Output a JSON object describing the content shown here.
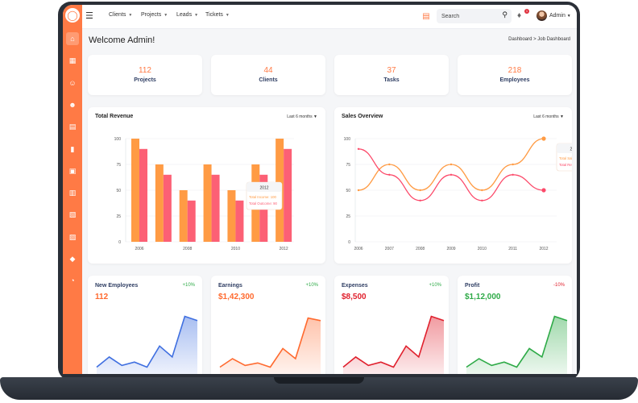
{
  "topbar": {
    "nav": [
      {
        "label": "Clients"
      },
      {
        "label": "Projects"
      },
      {
        "label": "Leads"
      },
      {
        "label": "Tickets"
      }
    ],
    "search_placeholder": "Search",
    "notification_count": "1",
    "user_name": "Admin"
  },
  "sidebar": {
    "items": [
      "home-icon",
      "dashboard-icon",
      "users-icon",
      "user-icon",
      "document-icon",
      "chart-icon",
      "ticket-icon",
      "clipboard-icon",
      "file-icon",
      "file-text-icon",
      "shield-icon",
      "clock-icon"
    ]
  },
  "page": {
    "title": "Welcome Admin!",
    "breadcrumb": "Dashboard  >  Job Dashboard"
  },
  "stats": [
    {
      "value": "112",
      "label": "Projects"
    },
    {
      "value": "44",
      "label": "Clients"
    },
    {
      "value": "37",
      "label": "Tasks"
    },
    {
      "value": "218",
      "label": "Employees"
    }
  ],
  "revenue_chart": {
    "title": "Total Revenue",
    "range": "Last 6 months",
    "tooltip": {
      "year": "2012",
      "line1": "Total Income: 100",
      "line2": "Total Outcome: 90"
    },
    "chart_data": {
      "type": "bar",
      "categories": [
        "2006",
        "2007",
        "2008",
        "2009",
        "2010",
        "2011",
        "2012"
      ],
      "tick_labels": [
        "2006",
        "2008",
        "2010",
        "2012"
      ],
      "series": [
        {
          "values": [
            100,
            75,
            50,
            75,
            50,
            75,
            100
          ],
          "color": "#ff9b44"
        },
        {
          "values": [
            90,
            65,
            40,
            65,
            40,
            65,
            90
          ],
          "color": "#fc6075"
        }
      ],
      "yticks": [
        "0",
        "25",
        "50",
        "75",
        "100"
      ],
      "ylim": [
        0,
        100
      ]
    }
  },
  "sales_chart": {
    "title": "Sales Overview",
    "range": "Last 6 months",
    "tooltip": {
      "year": "2012",
      "line1": "Total Sales: 100",
      "line2": "Total Revenue: 50"
    },
    "chart_data": {
      "type": "line",
      "x": [
        "2006",
        "2007",
        "2008",
        "2009",
        "2010",
        "2011",
        "2012"
      ],
      "series": [
        {
          "values": [
            50,
            75,
            50,
            75,
            50,
            75,
            100
          ],
          "color": "#ff9b44"
        },
        {
          "values": [
            90,
            65,
            40,
            65,
            40,
            65,
            50
          ],
          "color": "#fc4a6a"
        }
      ],
      "yticks": [
        "0",
        "25",
        "50",
        "75",
        "100"
      ],
      "ylim": [
        0,
        100
      ]
    }
  },
  "mini_cards": [
    {
      "title": "New Employees",
      "pct": "+10%",
      "pct_color": "#2eaa47",
      "value": "112",
      "value_color": "#ff6a2f",
      "line_color": "#3f6fe0",
      "fill_color": "#3f6fe0",
      "chart_data": {
        "type": "area",
        "values": [
          10,
          22,
          12,
          16,
          10,
          35,
          22,
          70,
          65
        ]
      }
    },
    {
      "title": "Earnings",
      "pct": "+10%",
      "pct_color": "#2eaa47",
      "value": "$1,42,300",
      "value_color": "#ff6a2f",
      "line_color": "#ff6a2f",
      "fill_color": "#ff7a45",
      "chart_data": {
        "type": "area",
        "values": [
          10,
          20,
          12,
          15,
          10,
          32,
          20,
          68,
          65
        ]
      }
    },
    {
      "title": "Expenses",
      "pct": "+10%",
      "pct_color": "#2eaa47",
      "value": "$8,500",
      "value_color": "#e0202d",
      "line_color": "#e0202d",
      "fill_color": "#e0202d",
      "chart_data": {
        "type": "area",
        "values": [
          10,
          22,
          12,
          16,
          10,
          35,
          22,
          70,
          65
        ]
      }
    },
    {
      "title": "Profit",
      "pct": "-10%",
      "pct_color": "#e0202d",
      "value": "$1,12,000",
      "value_color": "#2eaa47",
      "line_color": "#2eaa47",
      "fill_color": "#2eaa47",
      "chart_data": {
        "type": "area",
        "values": [
          10,
          20,
          12,
          16,
          10,
          32,
          22,
          70,
          65
        ]
      }
    }
  ]
}
